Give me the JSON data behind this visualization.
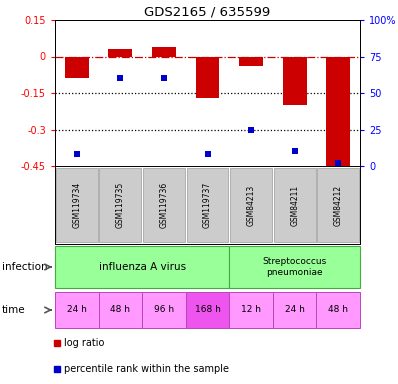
{
  "title": "GDS2165 / 635599",
  "samples": [
    "GSM119734",
    "GSM119735",
    "GSM119736",
    "GSM119737",
    "GSM84213",
    "GSM84211",
    "GSM84212"
  ],
  "log_ratio": [
    -0.09,
    0.03,
    0.04,
    -0.17,
    -0.04,
    -0.2,
    -0.45
  ],
  "percentile_rank": [
    8,
    60,
    60,
    8,
    25,
    10,
    2
  ],
  "ylim_left": [
    -0.45,
    0.15
  ],
  "ylim_right": [
    0,
    100
  ],
  "yticks_left": [
    0.15,
    0,
    -0.15,
    -0.3,
    -0.45
  ],
  "yticks_right": [
    100,
    75,
    50,
    25,
    0
  ],
  "hlines_dotted": [
    -0.15,
    -0.3
  ],
  "bar_color": "#cc0000",
  "dot_color": "#0000cc",
  "bar_width": 0.55,
  "time_labels": [
    "24 h",
    "48 h",
    "96 h",
    "168 h",
    "12 h",
    "24 h",
    "48 h"
  ],
  "time_colors": [
    "#ff99ff",
    "#ff99ff",
    "#ff99ff",
    "#ee55ee",
    "#ff99ff",
    "#ff99ff",
    "#ff99ff"
  ],
  "legend_items": [
    {
      "label": "log ratio",
      "color": "#cc0000"
    },
    {
      "label": "percentile rank within the sample",
      "color": "#0000cc"
    }
  ],
  "sample_box_color": "#cccccc",
  "infection_label": "infection",
  "time_label": "time",
  "inf_group1_label": "influenza A virus",
  "inf_group2_label": "Streptococcus\npneumoniae",
  "inf_color": "#99ff99",
  "inf_edge_color": "#44aa44"
}
